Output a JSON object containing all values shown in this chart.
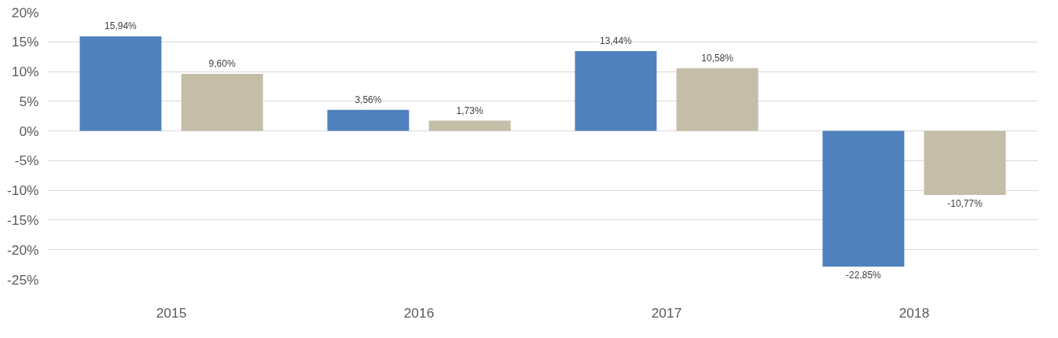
{
  "chart_data": {
    "type": "bar",
    "categories": [
      "2015",
      "2016",
      "2017",
      "2018"
    ],
    "series": [
      {
        "color": "#4f81bd",
        "values": [
          15.94,
          3.56,
          13.44,
          -22.85
        ],
        "value_labels": [
          "15,94%",
          "3,56%",
          "13,44%",
          "-22,85%"
        ]
      },
      {
        "color": "#c4bda8",
        "values": [
          9.6,
          1.73,
          10.58,
          -10.77
        ],
        "value_labels": [
          "9,60%",
          "1,73%",
          "10,58%",
          "-10,77%"
        ]
      }
    ],
    "ylim": [
      -25,
      20
    ],
    "yticks": [
      {
        "value": -25,
        "label": "-25%"
      },
      {
        "value": -20,
        "label": "-20%"
      },
      {
        "value": -15,
        "label": "-15%"
      },
      {
        "value": -10,
        "label": "-10%"
      },
      {
        "value": -5,
        "label": "-5%"
      },
      {
        "value": 0,
        "label": "0%"
      },
      {
        "value": 5,
        "label": "5%"
      },
      {
        "value": 10,
        "label": "10%"
      },
      {
        "value": 15,
        "label": "15%"
      },
      {
        "value": 20,
        "label": "20%"
      }
    ],
    "grid": "y"
  }
}
